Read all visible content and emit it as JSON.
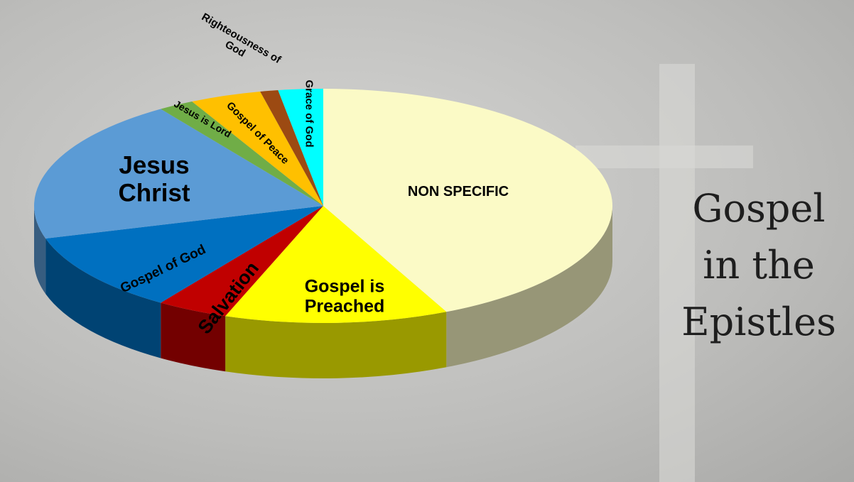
{
  "chart_data": {
    "type": "pie3d",
    "title": [
      "Gospel",
      "in the",
      "Epistles"
    ],
    "categories": [
      "NON SPECIFIC",
      "Gospel is Preached",
      "Salvation",
      "Gospel of God",
      "Jesus Christ",
      "Jesus is Lord",
      "Gospel of Peace",
      "Righteousness of God",
      "Grace of God"
    ],
    "values": [
      43,
      12.5,
      4,
      11,
      20,
      2,
      4,
      1,
      2.5
    ],
    "colors": [
      "#fbfac6",
      "#ffff00",
      "#c00000",
      "#0070c0",
      "#5b9bd5",
      "#70ad47",
      "#ffc000",
      "#9c4a12",
      "#00ffff"
    ]
  }
}
